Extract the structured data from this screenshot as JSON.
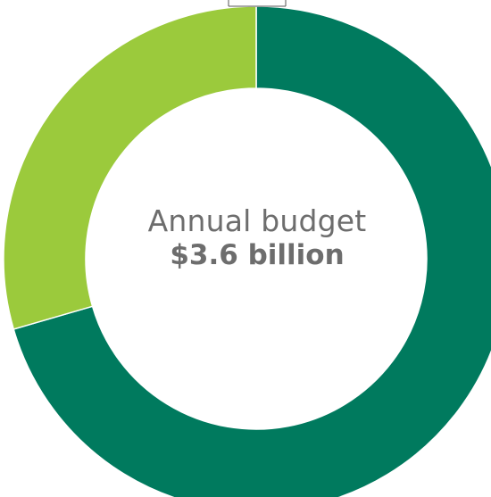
{
  "chart_data": {
    "type": "pie",
    "donut": true,
    "title": "",
    "center_text": {
      "title": "Annual budget",
      "value": "$3.6 billion"
    },
    "slices": [
      {
        "value": 70.5,
        "color": "#007a5e"
      },
      {
        "value": 29.5,
        "color": "#9bca3c"
      }
    ]
  }
}
